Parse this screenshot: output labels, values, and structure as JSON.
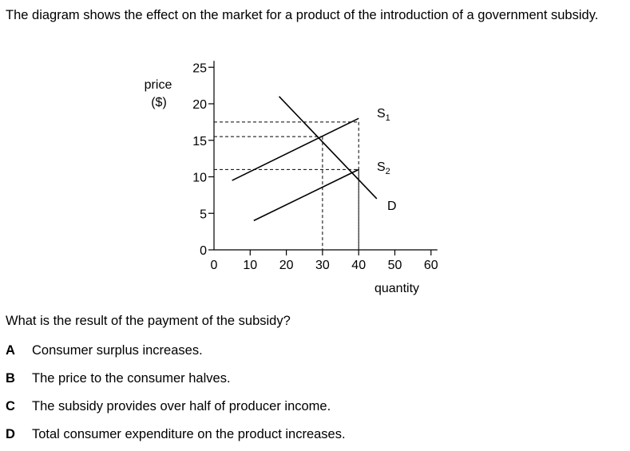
{
  "question": {
    "intro": "The diagram shows the effect on the market for a product of the introduction of a government subsidy.",
    "prompt": "What is the result of the payment of the subsidy?",
    "options": [
      {
        "letter": "A",
        "text": "Consumer surplus increases."
      },
      {
        "letter": "B",
        "text": "The price to the consumer halves."
      },
      {
        "letter": "C",
        "text": "The subsidy provides over half of producer income."
      },
      {
        "letter": "D",
        "text": "Total consumer expenditure on the product increases."
      }
    ]
  },
  "diagram": {
    "y_label_line1": "price",
    "y_label_line2": "($)",
    "x_label": "quantity",
    "x_ticks": [
      "0",
      "10",
      "20",
      "30",
      "40",
      "50",
      "60"
    ],
    "y_ticks": [
      "0",
      "5",
      "10",
      "15",
      "20",
      "25"
    ],
    "curves": {
      "S1": {
        "label_main": "S",
        "label_sub": "1"
      },
      "S2": {
        "label_main": "S",
        "label_sub": "2"
      },
      "D": {
        "label_main": "D"
      }
    }
  },
  "chart_data": {
    "type": "line",
    "xlabel": "quantity",
    "ylabel": "price ($)",
    "xlim": [
      0,
      60
    ],
    "ylim": [
      0,
      25
    ],
    "series": [
      {
        "name": "S1",
        "x": [
          5,
          40
        ],
        "y": [
          9.5,
          18
        ]
      },
      {
        "name": "S2",
        "x": [
          11,
          40
        ],
        "y": [
          4,
          11
        ]
      },
      {
        "name": "D",
        "x": [
          18,
          45
        ],
        "y": [
          21,
          7
        ]
      }
    ],
    "guides": [
      {
        "x": 30,
        "y": 15.5
      },
      {
        "x": 40,
        "y": 17.5
      },
      {
        "x": 40,
        "y": 11
      }
    ]
  }
}
